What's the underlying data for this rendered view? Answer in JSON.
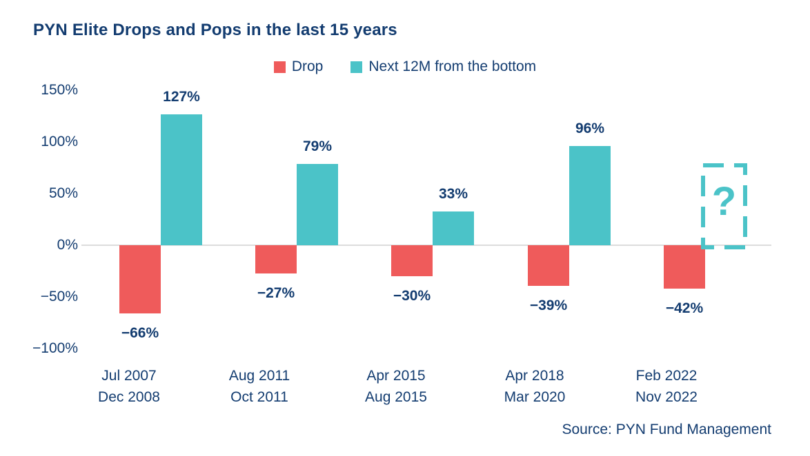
{
  "page": {
    "title": "PYN Elite Drops and Pops in the last 15 years",
    "source": "Source: PYN Fund Management"
  },
  "legend": {
    "items": [
      {
        "label": "Drop",
        "color": "#EF5B5B"
      },
      {
        "label": "Next 12M from the bottom",
        "color": "#4BC3C8"
      }
    ],
    "position": "top-center"
  },
  "colors": {
    "drop": "#EF5B5B",
    "pop": "#4BC3C8",
    "text_navy": "#133C70",
    "axis_line": "#DCDCDC",
    "background": "#FFFFFF"
  },
  "chart_data": {
    "type": "bar",
    "title": "PYN Elite Drops and Pops in the last 15 years",
    "categories": [
      {
        "line1": "Jul 2007",
        "line2": "Dec 2008"
      },
      {
        "line1": "Aug 2011",
        "line2": "Oct 2011"
      },
      {
        "line1": "Apr 2015",
        "line2": "Aug 2015"
      },
      {
        "line1": "Apr 2018",
        "line2": "Mar 2020"
      },
      {
        "line1": "Feb 2022",
        "line2": "Nov 2022"
      }
    ],
    "series": [
      {
        "name": "Drop",
        "color": "#EF5B5B",
        "values": [
          -66,
          -27,
          -30,
          -39,
          -42
        ]
      },
      {
        "name": "Next 12M from the bottom",
        "color": "#4BC3C8",
        "values": [
          127,
          79,
          33,
          96,
          null
        ]
      }
    ],
    "data_labels": {
      "drop": [
        "−66%",
        "−27%",
        "−30%",
        "−39%",
        "−42%"
      ],
      "pop": [
        "127%",
        "79%",
        "33%",
        "96%",
        null
      ]
    },
    "unknown_marker": {
      "group_index": 4,
      "symbol": "?",
      "color": "#4BC3C8"
    },
    "y_axis": {
      "unit": "%",
      "range": [
        -100,
        150
      ],
      "ticks": [
        {
          "value": 150,
          "label": "150%"
        },
        {
          "value": 100,
          "label": "100%"
        },
        {
          "value": 50,
          "label": "50%"
        },
        {
          "value": 0,
          "label": "0%"
        },
        {
          "value": -50,
          "label": "−50%"
        },
        {
          "value": -100,
          "label": "−100%"
        }
      ]
    },
    "gridlines": "zero-line-only",
    "legend_position": "top-center",
    "source": "Source: PYN Fund Management"
  }
}
